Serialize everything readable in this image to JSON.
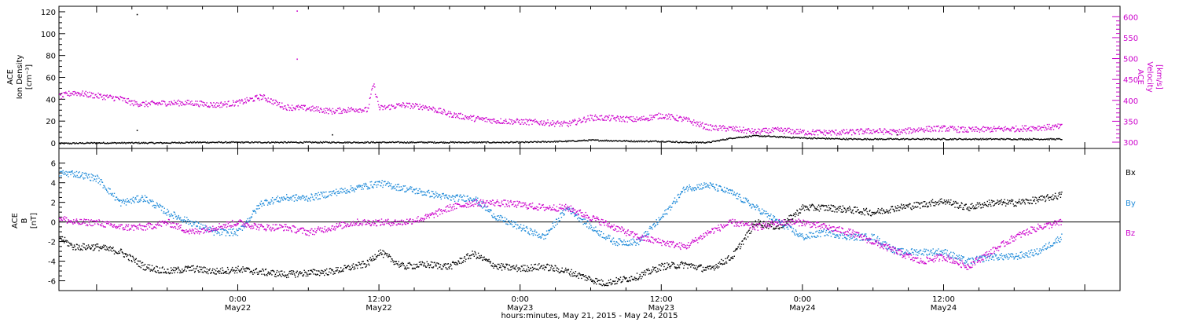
{
  "chart_data": [
    {
      "type": "scatter",
      "panel": "plasma",
      "ylabel_left": [
        "ACE",
        "Ion Density",
        "[cm⁻³]"
      ],
      "ylabel_right": [
        "ACE",
        "Velocity",
        "[km/s]"
      ],
      "ylim_left": [
        -5,
        125
      ],
      "ylim_right": [
        285,
        625
      ],
      "yticks_left": [
        0,
        20,
        40,
        60,
        80,
        100,
        120
      ],
      "yticks_right": [
        300,
        350,
        400,
        450,
        500,
        550,
        600
      ],
      "colors": {
        "density": "#000000",
        "velocity": "#cc00cc"
      },
      "series": [
        {
          "axis": "left",
          "color": "#000000",
          "x_hours": [
            -15.2,
            -12,
            -10,
            -8,
            -6,
            -4,
            -2,
            0,
            4,
            8,
            12,
            16,
            20,
            24,
            28,
            30,
            34,
            36,
            38,
            40,
            42,
            44,
            46,
            48,
            52,
            56,
            60,
            64,
            68,
            70
          ],
          "values": [
            0,
            0.5,
            0.5,
            0.5,
            0.5,
            1,
            1,
            1,
            1,
            1,
            1,
            1,
            1,
            1,
            2,
            3,
            2,
            2,
            1,
            1,
            5,
            7,
            6,
            5,
            4,
            4,
            4,
            4,
            4,
            4
          ],
          "spikes": [
            [
              -8.6,
              118
            ],
            [
              -8.6,
              12
            ],
            [
              8,
              8
            ],
            [
              44,
              10
            ],
            [
              56,
              8
            ]
          ]
        },
        {
          "axis": "right",
          "color": "#cc00cc",
          "x_hours": [
            -15.2,
            -14,
            -12,
            -10,
            -9,
            -8,
            -6,
            -4,
            -2,
            0,
            2,
            4,
            6,
            8,
            10,
            11,
            11.5,
            12,
            14,
            16,
            18,
            20,
            22,
            24,
            26,
            28,
            30,
            32,
            34,
            36,
            38,
            40,
            42,
            44,
            46,
            48,
            50,
            52,
            54,
            56,
            58,
            60,
            62,
            64,
            66,
            68,
            70
          ],
          "values": [
            410,
            420,
            412,
            405,
            395,
            392,
            395,
            395,
            390,
            395,
            410,
            385,
            382,
            375,
            380,
            378,
            440,
            382,
            390,
            385,
            368,
            358,
            352,
            350,
            348,
            344,
            360,
            358,
            355,
            365,
            355,
            336,
            333,
            326,
            330,
            325,
            324,
            325,
            328,
            325,
            332,
            334,
            330,
            332,
            333,
            336,
            338
          ],
          "spikes": [
            [
              5,
              615
            ],
            [
              5,
              500
            ]
          ]
        }
      ]
    },
    {
      "type": "scatter",
      "panel": "magnetic",
      "ylabel": [
        "ACE",
        "B",
        "[nT]"
      ],
      "ylim": [
        -7,
        7.5
      ],
      "yticks": [
        -6,
        -4,
        -2,
        0,
        2,
        4,
        6
      ],
      "legend": [
        "Bx",
        "By",
        "Bz"
      ],
      "legend_placement": "right",
      "series": [
        {
          "name": "Bx",
          "color": "#000000",
          "x_hours": [
            -15.2,
            -14,
            -12,
            -10,
            -8,
            -6,
            -4,
            -2,
            0,
            4,
            8,
            11,
            12,
            14,
            16,
            18,
            20,
            22,
            24,
            26,
            28,
            30,
            31,
            32,
            34,
            36,
            38,
            40,
            42,
            44,
            46,
            48,
            50,
            52,
            54,
            56,
            58,
            60,
            62,
            64,
            66,
            68,
            70
          ],
          "values": [
            -1.5,
            -2.5,
            -2.5,
            -3,
            -4.5,
            -5,
            -4.7,
            -5,
            -4.8,
            -5.3,
            -5,
            -4.2,
            -3,
            -4.5,
            -4.3,
            -4.5,
            -3.2,
            -4.5,
            -4.7,
            -4.5,
            -5,
            -5.8,
            -6.2,
            -6,
            -5.5,
            -4.5,
            -4.3,
            -4.8,
            -3.5,
            0,
            -0.5,
            1.5,
            1.5,
            1.3,
            1,
            1.5,
            1.8,
            2.2,
            1.5,
            2,
            2,
            2.3,
            2.8
          ]
        },
        {
          "name": "By",
          "color": "#1e8ad9",
          "x_hours": [
            -15.2,
            -14,
            -12,
            -10,
            -8,
            -6,
            -4,
            -2,
            0,
            2,
            4,
            6,
            8,
            10,
            12,
            14,
            16,
            18,
            20,
            22,
            24,
            26,
            28,
            30,
            32,
            34,
            36,
            38,
            40,
            42,
            44,
            46,
            48,
            50,
            52,
            54,
            56,
            58,
            60,
            62,
            64,
            66,
            68,
            70
          ],
          "values": [
            5,
            5,
            4.5,
            2,
            2.5,
            1,
            0,
            -1,
            -1,
            2,
            2.5,
            2.5,
            3,
            3.5,
            4,
            3.5,
            3,
            2.5,
            2.5,
            0.5,
            -0.5,
            -1.5,
            1.5,
            -0.5,
            -2,
            -2,
            0.5,
            3.5,
            3.8,
            3,
            1.5,
            0,
            -1.5,
            -1,
            -1.5,
            -1.5,
            -3,
            -3,
            -3,
            -4,
            -3.5,
            -3.5,
            -3,
            -1.5
          ]
        },
        {
          "name": "Bz",
          "color": "#cc00cc",
          "x_hours": [
            -15.2,
            -14,
            -12,
            -10,
            -8,
            -6,
            -4,
            -2,
            0,
            2,
            4,
            6,
            8,
            10,
            12,
            14,
            16,
            18,
            20,
            22,
            24,
            26,
            28,
            30,
            32,
            34,
            36,
            38,
            40,
            42,
            44,
            46,
            48,
            50,
            52,
            54,
            56,
            58,
            60,
            62,
            64,
            66,
            68,
            70
          ],
          "values": [
            0.5,
            0,
            0,
            -0.5,
            -0.5,
            0,
            -1,
            -0.5,
            0,
            -0.5,
            -0.5,
            -1,
            -0.5,
            0,
            0,
            0,
            0.5,
            1.5,
            2,
            2,
            1.8,
            1.5,
            1.5,
            0.5,
            -0.5,
            -1.5,
            -2,
            -2.5,
            -1,
            0,
            -0.5,
            0,
            0,
            -0.5,
            -1,
            -2,
            -3,
            -4,
            -3.5,
            -4.5,
            -3,
            -1.5,
            -0.5,
            0
          ]
        }
      ]
    }
  ],
  "x_axis": {
    "range_hours": [
      -15.2,
      75
    ],
    "tick_hours": [
      0,
      12,
      24,
      36,
      48,
      60,
      72
    ],
    "tick_labels": [
      [
        "0:00",
        "May22"
      ],
      [
        "12:00",
        "May22"
      ],
      [
        "0:00",
        "May23"
      ],
      [
        "12:00",
        "May23"
      ],
      [
        "0:00",
        "May24"
      ],
      [
        "12:00",
        "May24"
      ]
    ],
    "xlabel": "hours:minutes, May 21, 2015 - May 24, 2015"
  }
}
